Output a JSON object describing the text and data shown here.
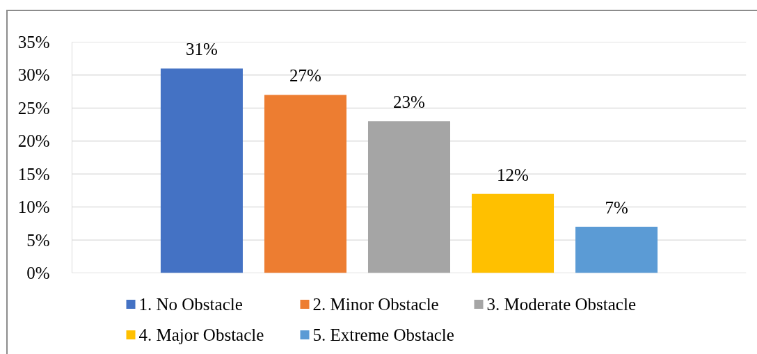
{
  "chart_data": {
    "type": "bar",
    "categories": [
      null
    ],
    "series": [
      {
        "name": "1. No Obstacle",
        "color": "#4472c4",
        "values": [
          31
        ],
        "value_labels": [
          "31%"
        ]
      },
      {
        "name": "2. Minor Obstacle",
        "color": "#ed7d31",
        "values": [
          27
        ],
        "value_labels": [
          "27%"
        ]
      },
      {
        "name": "3. Moderate Obstacle",
        "color": "#a5a5a5",
        "values": [
          23
        ],
        "value_labels": [
          "23%"
        ]
      },
      {
        "name": "4. Major Obstacle",
        "color": "#ffc000",
        "values": [
          12
        ],
        "value_labels": [
          "12%"
        ]
      },
      {
        "name": "5. Extreme Obstacle",
        "color": "#5b9bd5",
        "values": [
          7
        ],
        "value_labels": [
          "7%"
        ]
      }
    ],
    "ylim": [
      0,
      35
    ],
    "yticks": [
      {
        "value": 0,
        "label": "0%"
      },
      {
        "value": 5,
        "label": "5%"
      },
      {
        "value": 10,
        "label": "10%"
      },
      {
        "value": 15,
        "label": "15%"
      },
      {
        "value": 20,
        "label": "20%"
      },
      {
        "value": 25,
        "label": "25%"
      },
      {
        "value": 30,
        "label": "30%"
      },
      {
        "value": 35,
        "label": "35%"
      }
    ],
    "grid": "y",
    "legend": "bottom"
  }
}
